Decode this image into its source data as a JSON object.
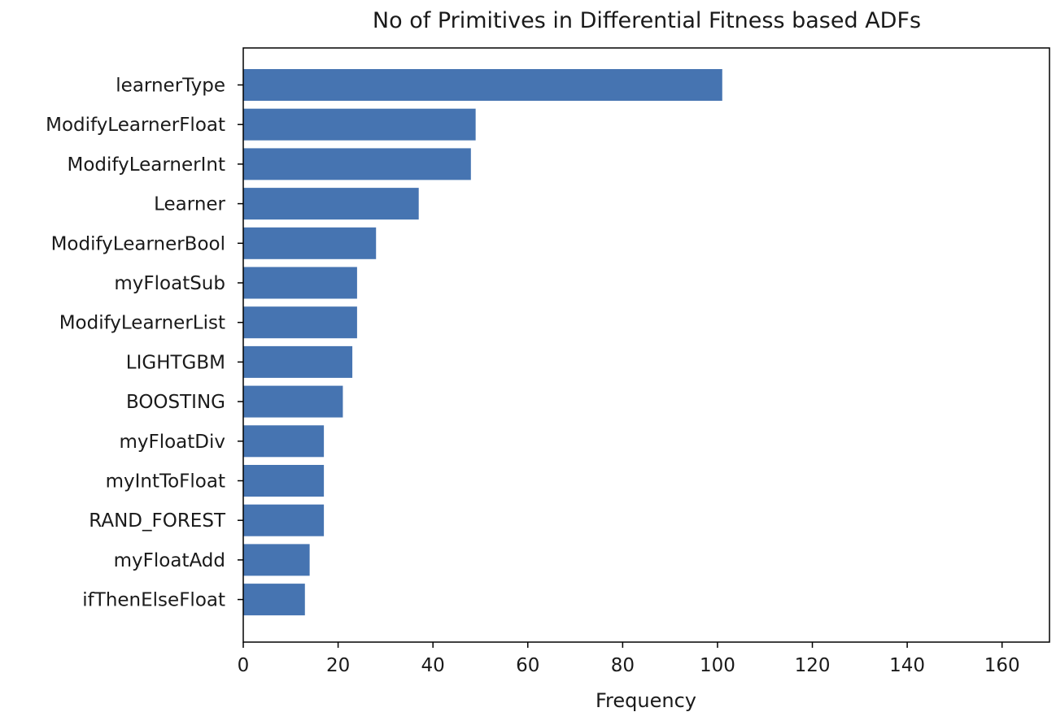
{
  "chart_data": {
    "type": "bar",
    "orientation": "horizontal",
    "title": "No of Primitives in Differential Fitness based ADFs",
    "xlabel": "Frequency",
    "ylabel": "",
    "xlim": [
      0,
      170
    ],
    "xticks": [
      0,
      20,
      40,
      60,
      80,
      100,
      120,
      140,
      160
    ],
    "categories": [
      "learnerType",
      "ModifyLearnerFloat",
      "ModifyLearnerInt",
      "Learner",
      "ModifyLearnerBool",
      "myFloatSub",
      "ModifyLearnerList",
      "LIGHTGBM",
      "BOOSTING",
      "myFloatDiv",
      "myIntToFloat",
      "RAND_FOREST",
      "myFloatAdd",
      "ifThenElseFloat"
    ],
    "values": [
      101,
      49,
      48,
      37,
      28,
      24,
      24,
      23,
      21,
      17,
      17,
      17,
      14,
      13
    ],
    "bar_color": "#4674b1",
    "grid": false,
    "legend": "none"
  }
}
